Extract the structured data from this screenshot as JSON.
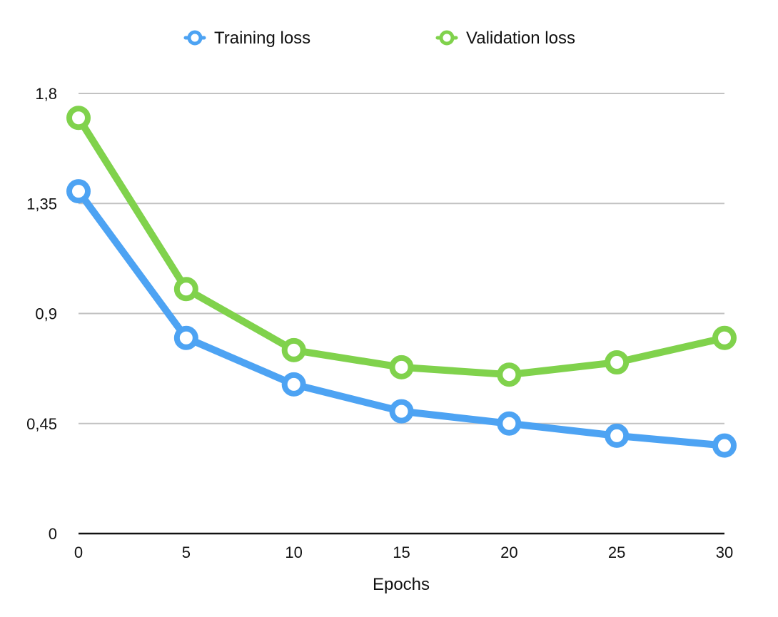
{
  "chart_data": {
    "type": "line",
    "title": "",
    "xlabel": "Epochs",
    "ylabel": "",
    "x": [
      0,
      5,
      10,
      15,
      20,
      25,
      30
    ],
    "xlim": [
      0,
      30
    ],
    "ylim": [
      0,
      1.8
    ],
    "x_ticks": [
      "0",
      "5",
      "10",
      "15",
      "20",
      "25",
      "30"
    ],
    "y_ticks": [
      {
        "value": 0,
        "label": "0"
      },
      {
        "value": 0.45,
        "label": "0,45"
      },
      {
        "value": 0.9,
        "label": "0,9"
      },
      {
        "value": 1.35,
        "label": "1,35"
      },
      {
        "value": 1.8,
        "label": "1,8"
      }
    ],
    "grid": true,
    "legend_position": "top-center",
    "series": [
      {
        "name": "Training loss",
        "color": "#4da3f3",
        "values": [
          1.4,
          0.8,
          0.61,
          0.5,
          0.45,
          0.4,
          0.36
        ]
      },
      {
        "name": "Validation loss",
        "color": "#80d24c",
        "values": [
          1.7,
          1.0,
          0.75,
          0.68,
          0.65,
          0.7,
          0.8
        ]
      }
    ]
  }
}
